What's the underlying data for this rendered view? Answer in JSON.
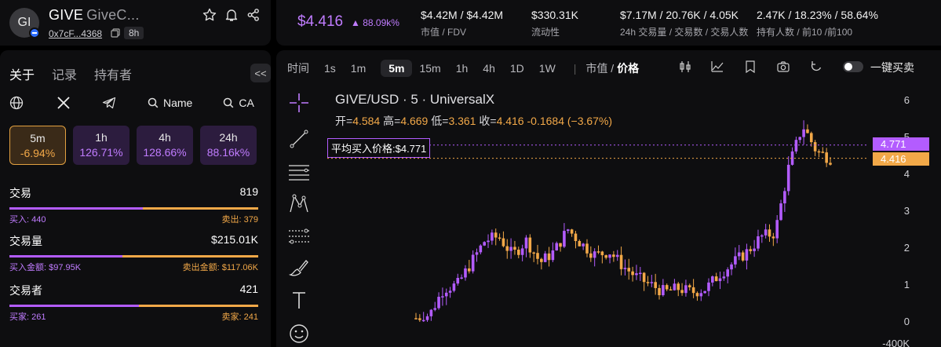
{
  "token": {
    "avatar_text": "GI",
    "symbol": "GIVE",
    "name_short": "GiveC...",
    "address": "0x7cF...4368",
    "age": "8h",
    "price": "$4.416",
    "change": "88.09k%"
  },
  "stats": [
    {
      "value": "$4.42M / $4.42M",
      "label": "市值 / FDV"
    },
    {
      "value": "$330.31K",
      "label": "流动性"
    },
    {
      "value": "$7.17M / 20.76K / 4.05K",
      "label": "24h 交易量 / 交易数 / 交易人数"
    },
    {
      "value": "2.47K / 18.23% / 58.64%",
      "label": "持有人数 / 前10 /前100"
    }
  ],
  "left": {
    "tabs": [
      "关于",
      "记录",
      "持有者"
    ],
    "collapse_label": "<<",
    "links": {
      "name_btn": "Name",
      "ca_btn": "CA"
    },
    "timeframes": [
      {
        "label": "5m",
        "value": "-6.94%",
        "active": true
      },
      {
        "label": "1h",
        "value": "126.71%",
        "active": false
      },
      {
        "label": "4h",
        "value": "128.66%",
        "active": false
      },
      {
        "label": "24h",
        "value": "88.16k%",
        "active": false
      }
    ],
    "metrics": [
      {
        "title": "交易",
        "total": "819",
        "left": "买入: 440",
        "right": "卖出: 379",
        "ratio": 0.537
      },
      {
        "title": "交易量",
        "total": "$215.01K",
        "left": "买入金额: $97.95K",
        "right": "卖出金额: $117.06K",
        "ratio": 0.455
      },
      {
        "title": "交易者",
        "total": "421",
        "left": "买家: 261",
        "right": "卖家: 241",
        "ratio": 0.52
      }
    ]
  },
  "chart": {
    "toolbar": {
      "time_label": "时间",
      "intervals": [
        "1s",
        "1m",
        "5m",
        "15m",
        "1h",
        "4h",
        "1D",
        "1W"
      ],
      "active_interval": "5m",
      "mode_left": "市值",
      "mode_right": "价格",
      "oneclick_label": "一键买卖"
    },
    "title": "GIVE/USD · 5 · UniversalX",
    "ohlc": {
      "open_label": "开=",
      "open": "4.584",
      "high_label": "高=",
      "high": "4.669",
      "low_label": "低=",
      "low": "3.361",
      "close_label": "收=",
      "close": "4.416",
      "delta": "-0.1684 (−3.67%)"
    },
    "avg_label": "平均买入价格:$4.771",
    "avg_tag": "4.771",
    "last_tag": "4.416",
    "yticks": [
      "6",
      "5",
      "4",
      "3",
      "2",
      "1",
      "0",
      "-400K"
    ],
    "colors": {
      "up": "#b35cff",
      "down": "#f2a848"
    }
  },
  "chart_data": {
    "type": "line",
    "title": "GIVE/USD · 5 · UniversalX",
    "y_axis": {
      "ticks": [
        0,
        1,
        2,
        3,
        4,
        5,
        6
      ]
    },
    "y_price_series_approx": [
      0.1,
      0.2,
      0.9,
      1.0,
      1.6,
      2.2,
      2.3,
      1.8,
      2.2,
      1.6,
      1.9,
      2.5,
      2.1,
      1.8,
      1.9,
      1.5,
      1.2,
      1.0,
      0.8,
      0.9,
      0.8,
      0.9,
      1.3,
      1.6,
      1.9,
      2.3,
      2.4,
      4.2,
      5.3,
      4.6,
      4.416
    ],
    "avg_buy_price": 4.771,
    "last_price": 4.416
  }
}
